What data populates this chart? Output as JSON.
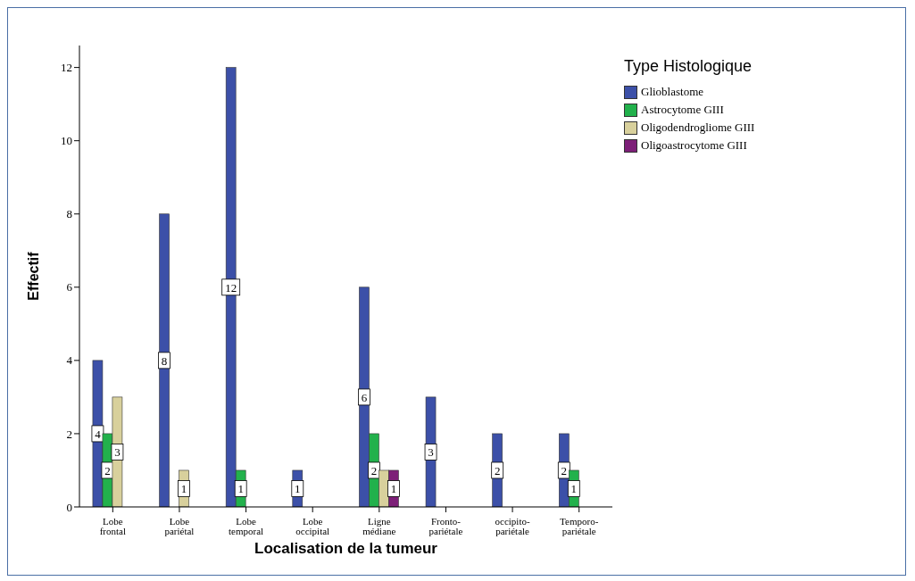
{
  "chart_data": {
    "type": "bar",
    "xlabel": "Localisation de la tumeur",
    "ylabel": "Effectif",
    "legend_title": "Type Histologique",
    "categories": [
      "Lobe frontal",
      "Lobe pariétal",
      "Lobe temporal",
      "Lobe occipital",
      "Ligne médiane",
      "Fronto-pariétale",
      "occipito-pariétale",
      "Temporo-pariétale"
    ],
    "series": [
      {
        "name": "Glioblastome",
        "color": "#3c50a8",
        "values": [
          4,
          8,
          12,
          1,
          6,
          3,
          2,
          2
        ],
        "value_labels": [
          "4",
          "8",
          "12",
          "1",
          "6",
          "3",
          "2",
          "2"
        ]
      },
      {
        "name": "Astrocytome GIII",
        "color": "#22b14c",
        "values": [
          2,
          null,
          1,
          null,
          2,
          null,
          null,
          1
        ],
        "value_labels": [
          "2",
          null,
          "1",
          null,
          "2",
          null,
          null,
          "1"
        ]
      },
      {
        "name": "Oligodendrogliome GIII",
        "color": "#d8d09c",
        "values": [
          3,
          1,
          null,
          null,
          1,
          null,
          null,
          null
        ],
        "value_labels": [
          "3",
          "1",
          null,
          null,
          null,
          null,
          null,
          null
        ]
      },
      {
        "name": "Oligoastrocytome GIII",
        "color": "#7d1f78",
        "values": [
          null,
          null,
          null,
          null,
          1,
          null,
          null,
          null
        ],
        "value_labels": [
          null,
          null,
          null,
          null,
          "1",
          null,
          null,
          null
        ]
      }
    ],
    "ylim": [
      0,
      12.6
    ],
    "yticks": [
      0,
      2,
      4,
      6,
      8,
      10,
      12
    ],
    "grid": false,
    "legend": "top right"
  }
}
